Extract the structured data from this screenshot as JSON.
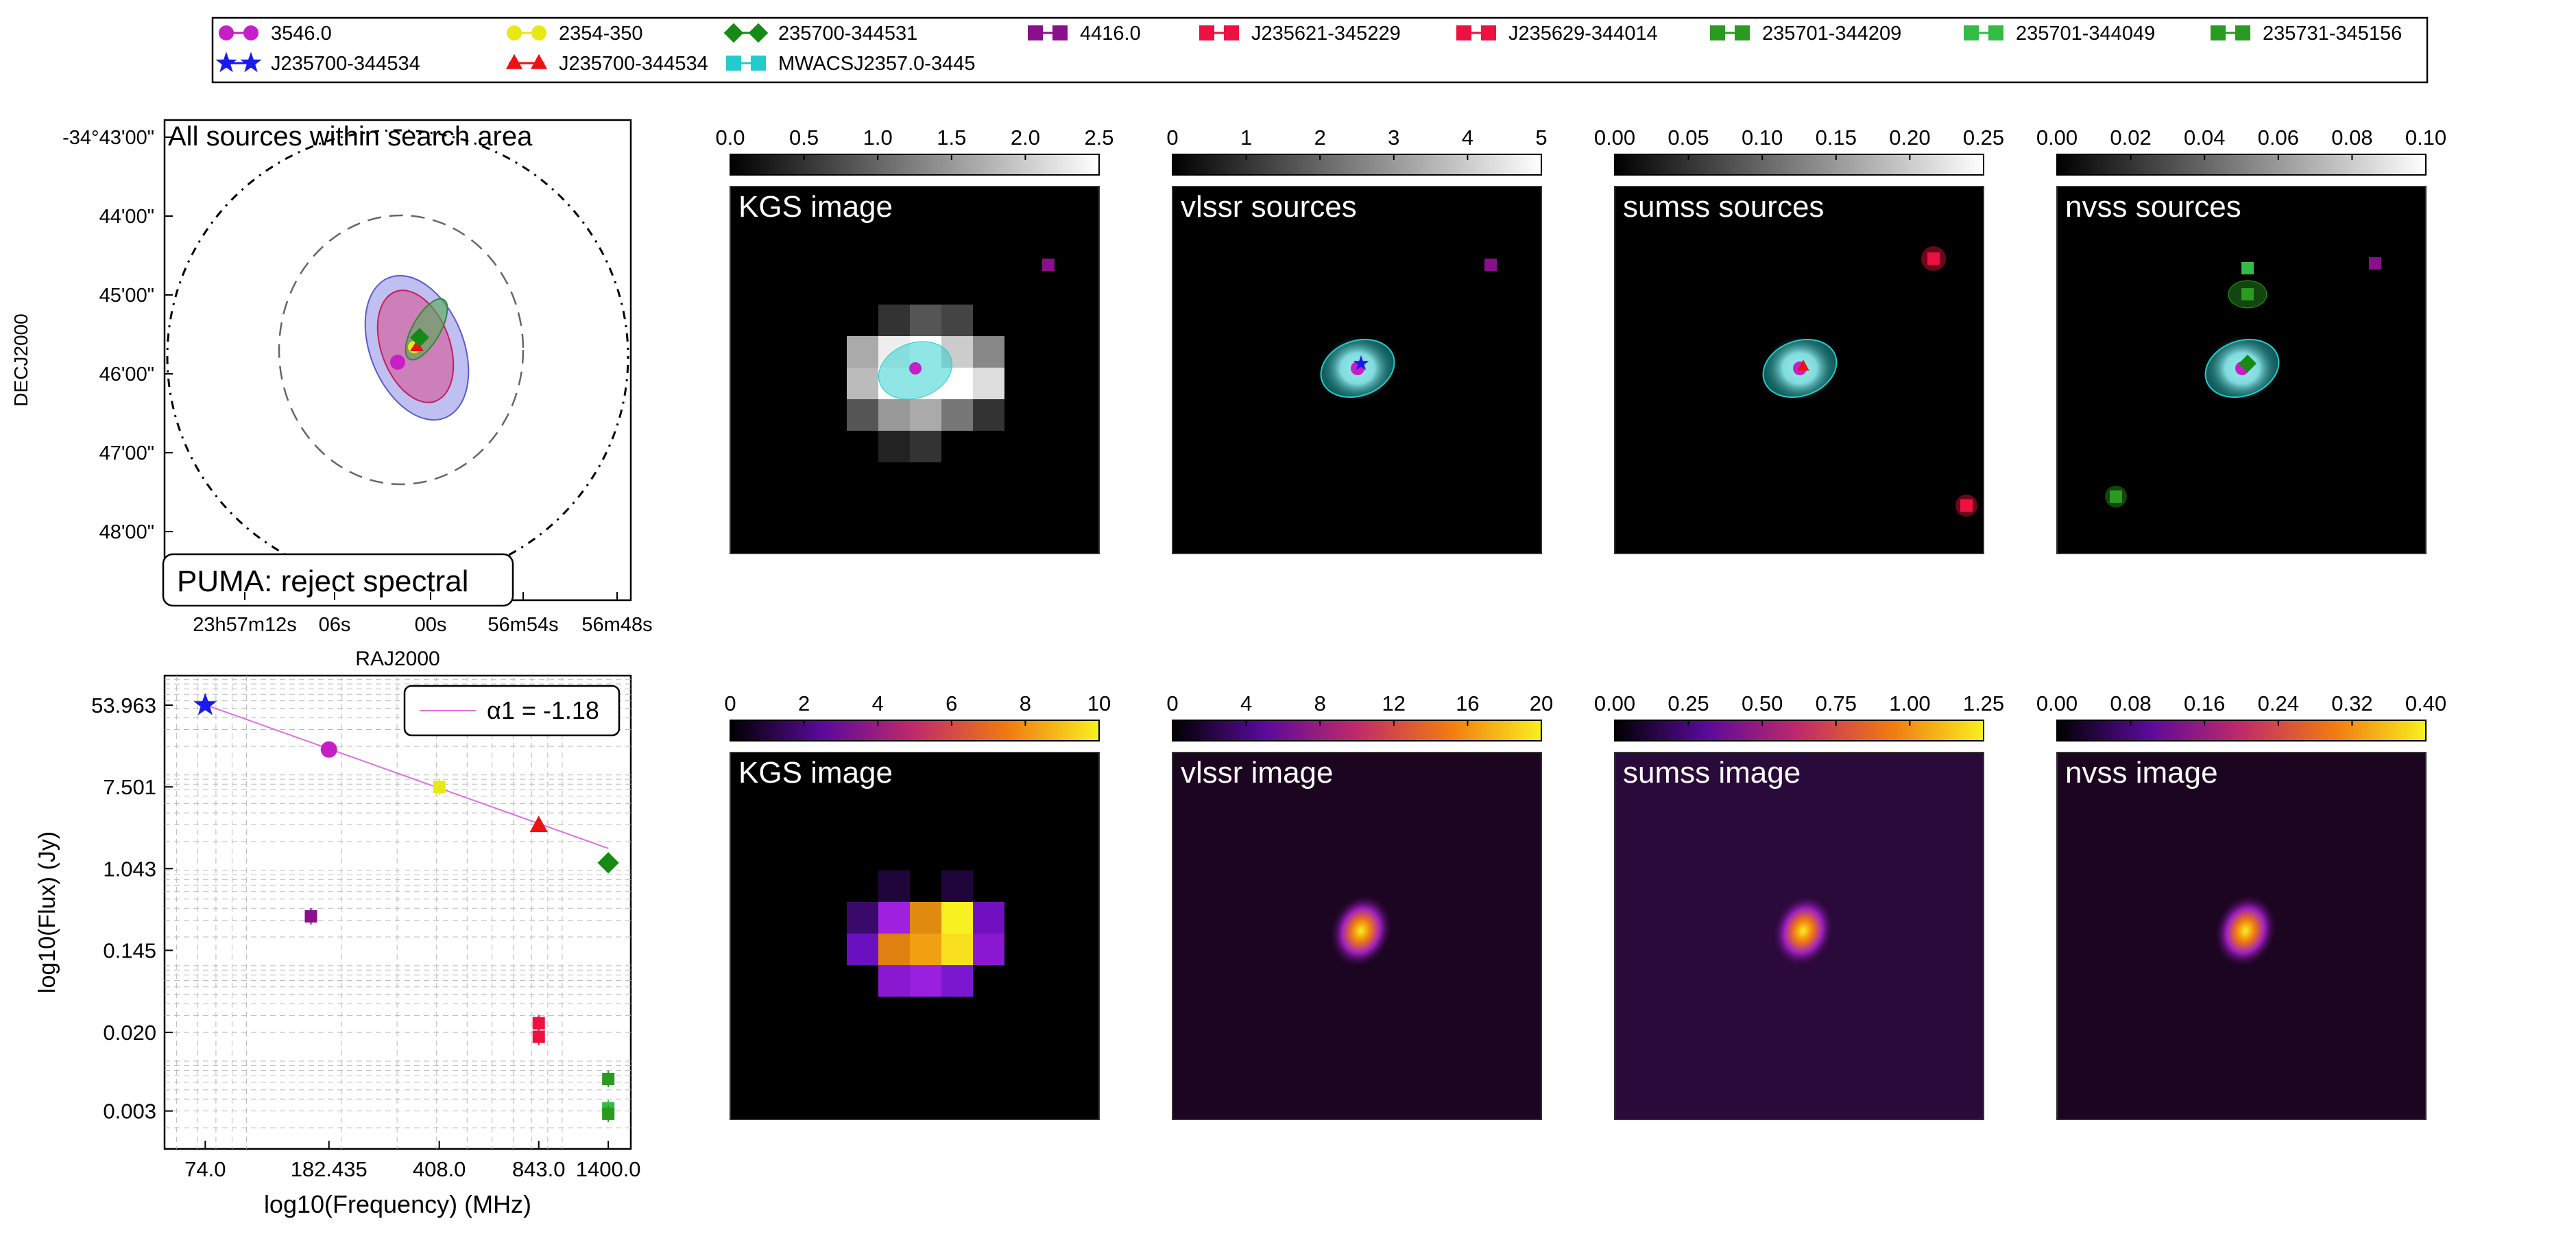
{
  "colors": {
    "magenta": "#c71fc7",
    "blue": "#1a1aee",
    "yellow": "#e8e814",
    "red": "#ee1111",
    "dkgreen": "#158a15",
    "cyan": "#22cccc",
    "purple": "#8a0f8a",
    "crimson": "#ee1040",
    "green": "#2a9a20",
    "green2": "#33bb44"
  },
  "legend": {
    "entries": [
      {
        "label": "3546.0",
        "marker": "circle",
        "color": "magenta"
      },
      {
        "label": "J235700-344534",
        "marker": "star",
        "color": "blue"
      },
      {
        "label": "2354-350",
        "marker": "circle",
        "color": "yellow"
      },
      {
        "label": "J235700-344534",
        "marker": "triangle",
        "color": "red"
      },
      {
        "label": "235700-344531",
        "marker": "diamond",
        "color": "dkgreen"
      },
      {
        "label": "MWACSJ2357.0-3445",
        "marker": "square",
        "color": "cyan"
      },
      {
        "label": "4416.0",
        "marker": "square",
        "color": "purple"
      },
      {
        "label": "J235621-345229",
        "marker": "square",
        "color": "crimson"
      },
      {
        "label": "J235629-344014",
        "marker": "square",
        "color": "crimson"
      },
      {
        "label": "235701-344209",
        "marker": "square",
        "color": "green"
      },
      {
        "label": "235701-344049",
        "marker": "square",
        "color": "green2"
      },
      {
        "label": "235731-345156",
        "marker": "square",
        "color": "green"
      }
    ]
  },
  "sky_panel": {
    "title": "All sources within search area",
    "status": "PUMA: reject spectral",
    "ylabel": "DECJ2000",
    "xlabel": "RAJ2000",
    "yticks": [
      "-34°43'00\"",
      "44'00\"",
      "45'00\"",
      "46'00\"",
      "47'00\"",
      "48'00\""
    ],
    "xticks": [
      "23h57m12s",
      "06s",
      "00s",
      "56m54s",
      "56m48s"
    ]
  },
  "chart_data": {
    "type": "scatter",
    "title": "",
    "xlabel": "log10(Frequency) (MHz)",
    "ylabel": "log10(Flux) (Jy)",
    "x_scale": "log",
    "y_scale": "log",
    "x_ticks": [
      "74.0",
      "182.435",
      "408.0",
      "843.0",
      "1400.0"
    ],
    "y_ticks": [
      "53.963",
      "7.501",
      "1.043",
      "0.145",
      "0.020",
      "0.003"
    ],
    "xlim": [
      55,
      1650
    ],
    "ylim": [
      0.0012,
      110
    ],
    "grid": true,
    "legend": {
      "label": "α1 = -1.18",
      "placement": "top-right"
    },
    "fit_line": {
      "alpha": -1.18,
      "x": [
        74,
        1400
      ],
      "y": [
        54.5,
        1.7
      ]
    },
    "points": [
      {
        "source": "J235700-344534",
        "x": 74,
        "y": 54,
        "marker": "star",
        "color": "blue"
      },
      {
        "source": "3546.0",
        "x": 182.435,
        "y": 18.5,
        "marker": "circle",
        "color": "magenta"
      },
      {
        "source": "2354-350",
        "x": 408,
        "y": 7.5,
        "marker": "square",
        "color": "yellow"
      },
      {
        "source": "J235700-344534",
        "x": 843,
        "y": 2.95,
        "marker": "triangle",
        "color": "red"
      },
      {
        "source": "235700-344531",
        "x": 1400,
        "y": 1.2,
        "marker": "diamond",
        "color": "dkgreen"
      },
      {
        "source": "4416.0",
        "x": 160,
        "y": 0.33,
        "marker": "square",
        "color": "purple"
      },
      {
        "source": "J235621-345229",
        "x": 843,
        "y": 0.025,
        "marker": "square",
        "color": "crimson"
      },
      {
        "source": "J235629-344014",
        "x": 843,
        "y": 0.018,
        "marker": "square",
        "color": "crimson"
      },
      {
        "source": "235701-344209",
        "x": 1400,
        "y": 0.0065,
        "marker": "square",
        "color": "green"
      },
      {
        "source": "235701-344049",
        "x": 1400,
        "y": 0.0032,
        "marker": "square",
        "color": "green2"
      },
      {
        "source": "235731-345156",
        "x": 1400,
        "y": 0.0028,
        "marker": "square",
        "color": "green"
      }
    ]
  },
  "panels": {
    "top": [
      {
        "label": "KGS image",
        "cbar": [
          "0.0",
          "0.5",
          "1.0",
          "1.5",
          "2.0",
          "2.5"
        ]
      },
      {
        "label": "vlssr sources",
        "cbar": [
          "0",
          "1",
          "2",
          "3",
          "4",
          "5"
        ]
      },
      {
        "label": "sumss sources",
        "cbar": [
          "0.00",
          "0.05",
          "0.10",
          "0.15",
          "0.20",
          "0.25"
        ]
      },
      {
        "label": "nvss sources",
        "cbar": [
          "0.00",
          "0.02",
          "0.04",
          "0.06",
          "0.08",
          "0.10"
        ]
      }
    ],
    "bottom": [
      {
        "label": "KGS image",
        "cbar": [
          "0",
          "2",
          "4",
          "6",
          "8",
          "10"
        ]
      },
      {
        "label": "vlssr image",
        "cbar": [
          "0",
          "4",
          "8",
          "12",
          "16",
          "20"
        ]
      },
      {
        "label": "sumss image",
        "cbar": [
          "0.00",
          "0.25",
          "0.50",
          "0.75",
          "1.00",
          "1.25"
        ]
      },
      {
        "label": "nvss image",
        "cbar": [
          "0.00",
          "0.08",
          "0.16",
          "0.24",
          "0.32",
          "0.40"
        ]
      }
    ]
  }
}
